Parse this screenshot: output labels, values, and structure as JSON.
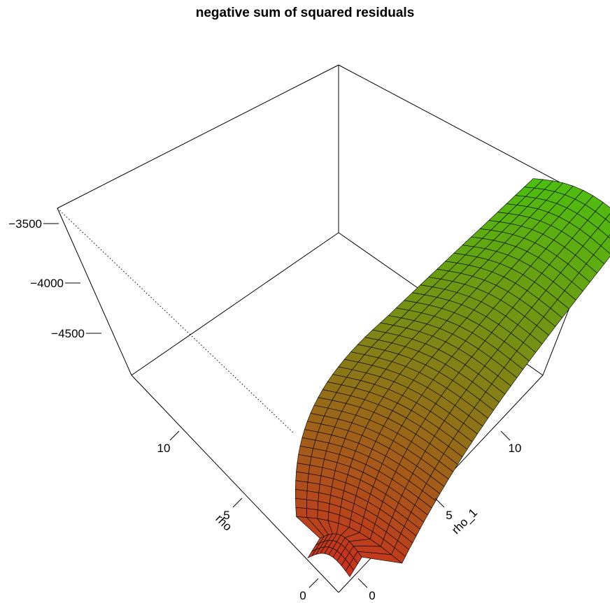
{
  "chart_data": {
    "type": "surface",
    "title": "negative sum of squared residuals",
    "xlabel": "rho",
    "ylabel": "rho_1",
    "zlabel": "",
    "x_ticks": [
      "0",
      "5",
      "10"
    ],
    "y_ticks": [
      "0",
      "5",
      "10"
    ],
    "z_ticks": [
      "-4500",
      "-4000",
      "-3500"
    ],
    "xlim": [
      0,
      14
    ],
    "ylim": [
      0,
      14
    ],
    "zlim": [
      -4800,
      -3400
    ],
    "color_low": "#c8321e",
    "color_high": "#4cc010",
    "surface_edge_color": "#000000",
    "grid": false
  }
}
